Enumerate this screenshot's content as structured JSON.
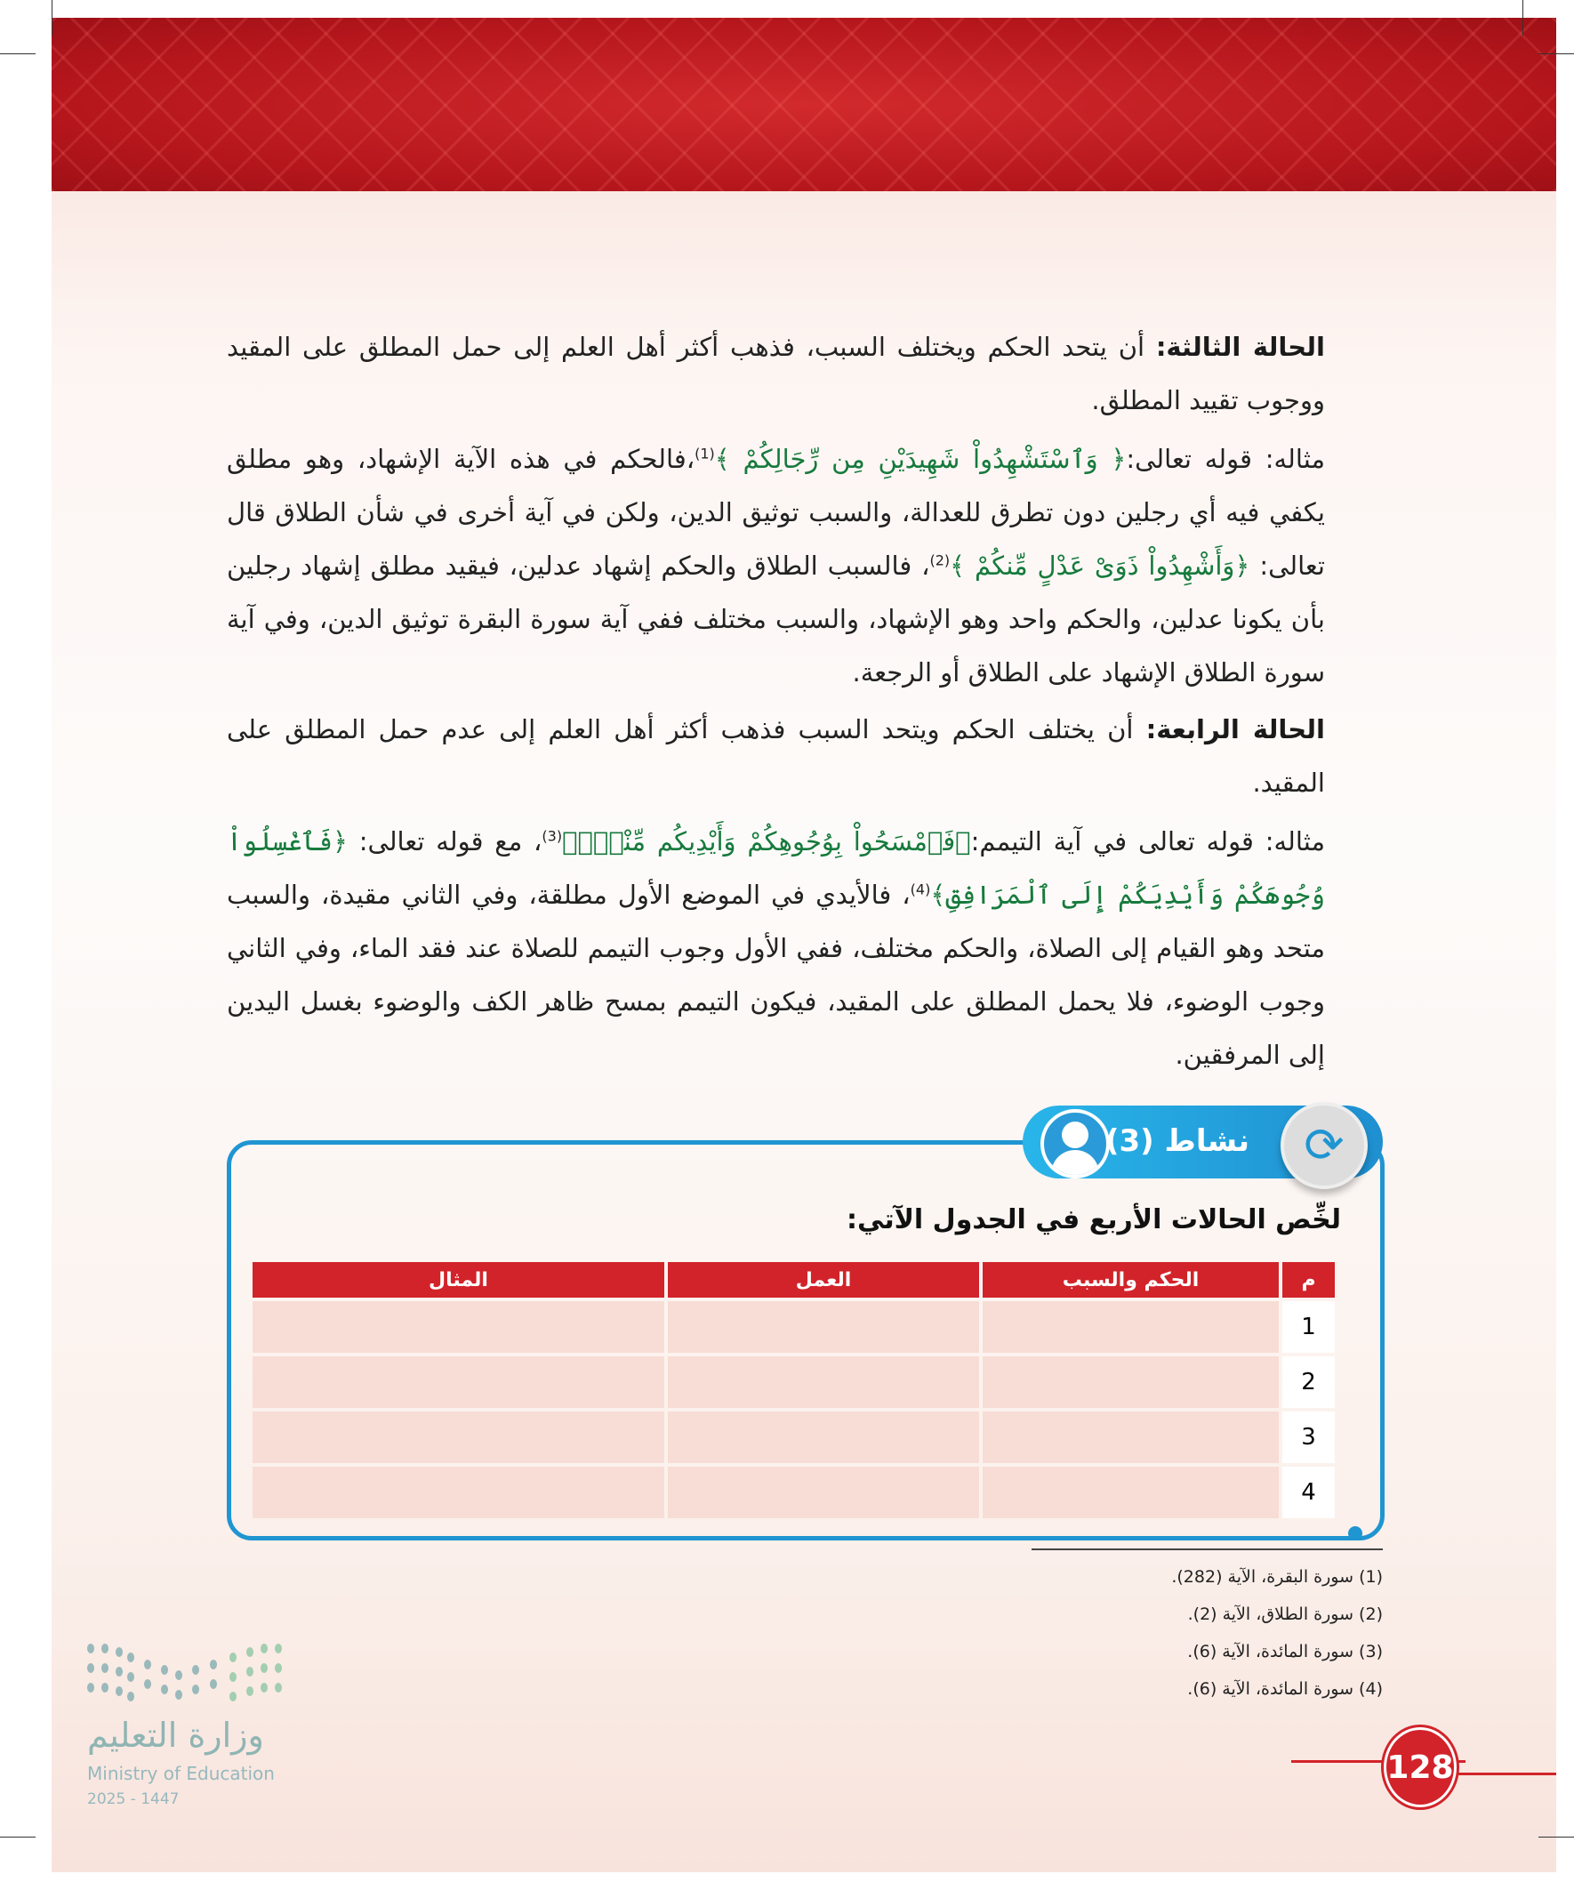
{
  "body": {
    "case3_label": "الحالة الثالثة:",
    "case3_text": "أن يتحد الحكم ويختلف السبب، فذهب أكثر أهل العلم إلى حمل المطلق على المقيد ووجوب تقييد المطلق.",
    "ex1_intro": "مثاله: قوله تعالى:",
    "ex1_verse1": "﴿ وَٱسْتَشْهِدُواْ شَهِيدَيْنِ مِن رِّجَالِكُمْ ﴾",
    "ex1_ref1": "(1)",
    "ex1_text1": "،فالحكم في هذه الآية الإشهاد، وهو مطلق يكفي فيه أي رجلين دون تطرق للعدالة، والسبب توثيق الدين، ولكن في آية أخرى في شأن الطلاق قال تعالى:",
    "ex1_verse2": "﴿وَأَشْهِدُواْ ذَوَىْ عَدْلٍ مِّنكُمْ ﴾",
    "ex1_ref2": "(2)",
    "ex1_text2": "، فالسبب الطلاق والحكم إشهاد عدلين، فيقيد مطلق إشهاد رجلين بأن يكونا عدلين، والحكم واحد وهو الإشهاد، والسبب مختلف ففي آية سورة البقرة توثيق الدين، وفي آية سورة الطلاق الإشهاد على الطلاق أو الرجعة.",
    "case4_label": "الحالة الرابعة:",
    "case4_text": "أن يختلف الحكم ويتحد السبب فذهب أكثر أهل العلم إلى عدم حمل المطلق على المقيد.",
    "ex2_intro": "مثاله: قوله تعالى في آية التيمم:",
    "ex2_verse1": "﴿فَٱمْسَحُواْ بِوُجُوهِكُمْ وَأَيْدِيكُم مِّنْهُۚ﴾",
    "ex2_ref1": "(3)",
    "ex2_mid": "، مع قوله تعالى:",
    "ex2_verse2": "﴿فَٱغْسِلُواْ وُجُوهَكُمْ وَأَيْدِيَكُمْ إِلَى ٱلْمَرَافِقِ﴾",
    "ex2_ref2": "(4)",
    "ex2_text": "، فالأيدي في الموضع الأول مطلقة، وفي الثاني مقيدة، والسبب متحد وهو القيام إلى الصلاة، والحكم مختلف، ففي الأول وجوب التيمم للصلاة عند فقد الماء، وفي الثاني وجوب الوضوء، فلا يحمل المطلق على المقيد، فيكون التيمم بمسح ظاهر الكف والوضوء بغسل اليدين إلى المرفقين."
  },
  "activity": {
    "title": "نشاط (3)",
    "instruction": "لخِّص الحالات الأربع في الجدول الآتي:",
    "icons": [
      "user-icon",
      "sync-icon"
    ],
    "accent": "#1f95d2",
    "table": {
      "headers": [
        "م",
        "الحكم والسبب",
        "العمل",
        "المثال"
      ],
      "rows": [
        [
          "1",
          "",
          "",
          ""
        ],
        [
          "2",
          "",
          "",
          ""
        ],
        [
          "3",
          "",
          "",
          ""
        ],
        [
          "4",
          "",
          "",
          ""
        ]
      ],
      "header_color": "#d2232a",
      "cell_color": "#f7ddd5"
    }
  },
  "footnotes": [
    "(1) سورة البقرة، الآية (282).",
    "(2) سورة الطلاق، الآية (2).",
    "(3) سورة المائدة، الآية (6).",
    "(4) سورة المائدة، الآية (6)."
  ],
  "ministry": {
    "arabic": "وزارة التعليم",
    "english": "Ministry of Education",
    "year": "2025 - 1447"
  },
  "page_number": "128"
}
